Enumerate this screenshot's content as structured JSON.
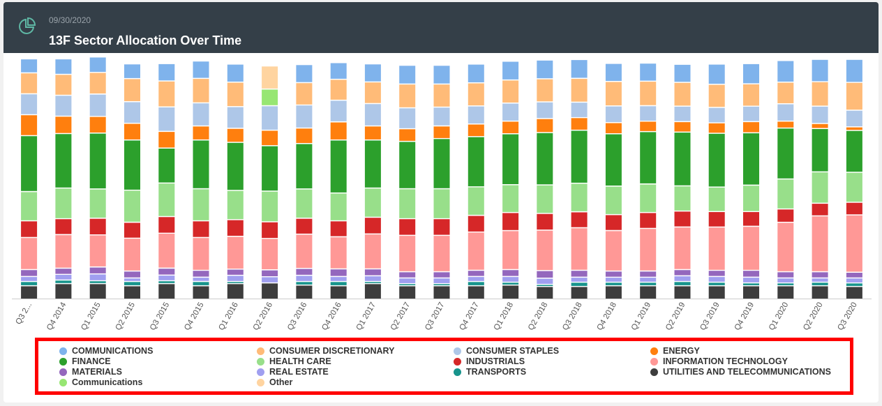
{
  "header": {
    "date": "09/30/2020",
    "title": "13F Sector Allocation Over Time",
    "icon": "pie-chart-icon"
  },
  "chart_data": {
    "type": "bar",
    "stacked": true,
    "percent": true,
    "ylim": [
      0,
      100
    ],
    "grid": false,
    "legend_placement": "bottom",
    "categories": [
      "Q3 2...",
      "Q4 2014",
      "Q1 2015",
      "Q2 2015",
      "Q3 2015",
      "Q4 2015",
      "Q1 2016",
      "Q2 2016",
      "Q3 2016",
      "Q4 2016",
      "Q1 2017",
      "Q2 2017",
      "Q3 2017",
      "Q4 2017",
      "Q1 2018",
      "Q2 2018",
      "Q3 2018",
      "Q4 2018",
      "Q1 2019",
      "Q2 2019",
      "Q3 2019",
      "Q4 2019",
      "Q1 2020",
      "Q2 2020",
      "Q3 2020"
    ],
    "series": [
      {
        "name": "UTILITIES AND TELECOMMUNICATIONS",
        "color": "#3d3d3d",
        "values": [
          5.6,
          6.5,
          6.5,
          5.6,
          6.5,
          5.6,
          6.5,
          6.8,
          5.9,
          5.6,
          6.5,
          5.6,
          5.6,
          5.6,
          5.9,
          5.3,
          5.3,
          5.6,
          5.6,
          5.6,
          5.6,
          5.6,
          5.6,
          5.6,
          5.3
        ]
      },
      {
        "name": "TRANSPORTS",
        "color": "#17948c",
        "values": [
          1.8,
          1.5,
          1.2,
          1.8,
          1.2,
          1.8,
          0.9,
          0,
          1.5,
          1.8,
          0.9,
          0.9,
          0.9,
          1.8,
          1.2,
          0.9,
          1.8,
          1.5,
          1.5,
          1.8,
          1.5,
          1.2,
          1.2,
          1.5,
          1.5
        ]
      },
      {
        "name": "REAL ESTATE",
        "color": "#a09ff0",
        "values": [
          2.1,
          2.4,
          2.9,
          1.5,
          2.4,
          1.8,
          2.6,
          2.6,
          2.6,
          2.1,
          2.4,
          2.4,
          2.4,
          2.1,
          2.4,
          2.6,
          2.1,
          2.1,
          2.1,
          2.4,
          2.4,
          2.4,
          2.1,
          1.8,
          2.1
        ]
      },
      {
        "name": "MATERIALS",
        "color": "#9467bd",
        "values": [
          2.9,
          2.6,
          2.9,
          2.9,
          2.9,
          2.9,
          2.6,
          2.9,
          2.9,
          3.2,
          2.9,
          2.6,
          2.6,
          2.6,
          2.9,
          3.2,
          2.9,
          2.6,
          2.6,
          2.6,
          2.6,
          2.9,
          2.6,
          2.6,
          2.4
        ]
      },
      {
        "name": "INFORMATION TECHNOLOGY",
        "color": "#ff9896",
        "values": [
          13.5,
          14.1,
          13.5,
          13.8,
          14.7,
          13.8,
          13.8,
          13.2,
          14.4,
          13.5,
          14.7,
          15.3,
          15.3,
          16.1,
          16.4,
          17.0,
          17.9,
          17.0,
          17.9,
          17.9,
          18.2,
          18.5,
          20.8,
          23.5,
          24.1
        ]
      },
      {
        "name": "INDUSTRIALS",
        "color": "#d62728",
        "values": [
          7.0,
          6.7,
          7.0,
          6.7,
          7.0,
          7.0,
          7.0,
          7.0,
          6.7,
          6.7,
          7.0,
          7.0,
          7.0,
          7.0,
          7.6,
          7.0,
          6.7,
          6.7,
          6.7,
          6.7,
          6.5,
          6.2,
          5.6,
          5.3,
          5.3
        ]
      },
      {
        "name": "HEALTH CARE",
        "color": "#98df8a",
        "values": [
          12.3,
          12.9,
          12.3,
          13.5,
          14.1,
          13.5,
          12.3,
          12.9,
          12.3,
          11.7,
          12.3,
          12.6,
          12.6,
          12.0,
          11.7,
          12.0,
          12.0,
          12.0,
          12.0,
          10.6,
          10.3,
          11.1,
          12.6,
          13.2,
          12.6
        ]
      },
      {
        "name": "FINANCE",
        "color": "#2ca02c",
        "values": [
          23.5,
          22.9,
          23.5,
          21.1,
          14.7,
          20.5,
          20.2,
          19.1,
          19.1,
          22.3,
          20.2,
          19.9,
          21.1,
          21.1,
          21.4,
          22.0,
          22.3,
          22.0,
          22.0,
          22.6,
          22.6,
          22.0,
          21.4,
          18.2,
          17.6
        ]
      },
      {
        "name": "ENERGY",
        "color": "#ff7f0e",
        "values": [
          8.8,
          7.3,
          7.0,
          7.0,
          7.0,
          5.9,
          5.9,
          6.5,
          6.5,
          7.6,
          5.9,
          5.3,
          5.3,
          5.3,
          5.3,
          5.9,
          5.3,
          4.7,
          4.4,
          4.4,
          4.4,
          4.7,
          2.9,
          2.1,
          1.5
        ]
      },
      {
        "name": "CONSUMER STAPLES",
        "color": "#aec7e8",
        "values": [
          8.8,
          8.8,
          9.4,
          9.1,
          10.3,
          9.7,
          9.1,
          10.3,
          9.7,
          9.1,
          9.4,
          8.8,
          7.9,
          7.6,
          7.6,
          7.0,
          6.5,
          7.0,
          6.5,
          6.5,
          6.5,
          6.5,
          7.3,
          7.3,
          7.0
        ]
      },
      {
        "name": "CONSUMER DISCRETIONARY",
        "color": "#ffbb78",
        "values": [
          8.8,
          8.8,
          9.1,
          9.7,
          10.9,
          10.3,
          10.3,
          0,
          9.4,
          8.8,
          9.1,
          10.0,
          9.7,
          9.7,
          9.7,
          9.7,
          10.0,
          10.3,
          10.3,
          10.0,
          9.7,
          9.4,
          9.1,
          10.3,
          11.7
        ]
      },
      {
        "name": "COMMUNICATIONS",
        "color": "#7fb3ec",
        "values": [
          5.9,
          6.5,
          6.5,
          6.2,
          7.3,
          7.3,
          7.6,
          0,
          7.6,
          7.0,
          7.6,
          7.9,
          7.9,
          7.9,
          7.9,
          7.9,
          7.9,
          7.6,
          7.6,
          7.6,
          8.5,
          8.5,
          9.1,
          9.4,
          9.7
        ]
      },
      {
        "name": "Communications",
        "color": "#97e673",
        "values": [
          0,
          0,
          0,
          0,
          0,
          0,
          0,
          7.0,
          0,
          0,
          0,
          0,
          0,
          0,
          0,
          0,
          0,
          0,
          0,
          0,
          0,
          0,
          0,
          0,
          0
        ]
      },
      {
        "name": "Other",
        "color": "#ffd4a0",
        "values": [
          0,
          0,
          0,
          0,
          0,
          0,
          0,
          9.7,
          0,
          0,
          0,
          0,
          0,
          0,
          0,
          0,
          0,
          0,
          0,
          0,
          0,
          0,
          0,
          0,
          0
        ]
      }
    ]
  },
  "legend": [
    {
      "label": "COMMUNICATIONS",
      "color": "#7fb3ec"
    },
    {
      "label": "CONSUMER DISCRETIONARY",
      "color": "#ffbb78"
    },
    {
      "label": "CONSUMER STAPLES",
      "color": "#aec7e8"
    },
    {
      "label": "ENERGY",
      "color": "#ff7f0e"
    },
    {
      "label": "FINANCE",
      "color": "#2ca02c"
    },
    {
      "label": "HEALTH CARE",
      "color": "#98df8a"
    },
    {
      "label": "INDUSTRIALS",
      "color": "#d62728"
    },
    {
      "label": "INFORMATION TECHNOLOGY",
      "color": "#ff9896"
    },
    {
      "label": "MATERIALS",
      "color": "#9467bd"
    },
    {
      "label": "REAL ESTATE",
      "color": "#a09ff0"
    },
    {
      "label": "TRANSPORTS",
      "color": "#17948c"
    },
    {
      "label": "UTILITIES AND TELECOMMUNICATIONS",
      "color": "#3d3d3d"
    },
    {
      "label": "Communications",
      "color": "#97e673"
    },
    {
      "label": "Other",
      "color": "#ffd4a0"
    }
  ]
}
